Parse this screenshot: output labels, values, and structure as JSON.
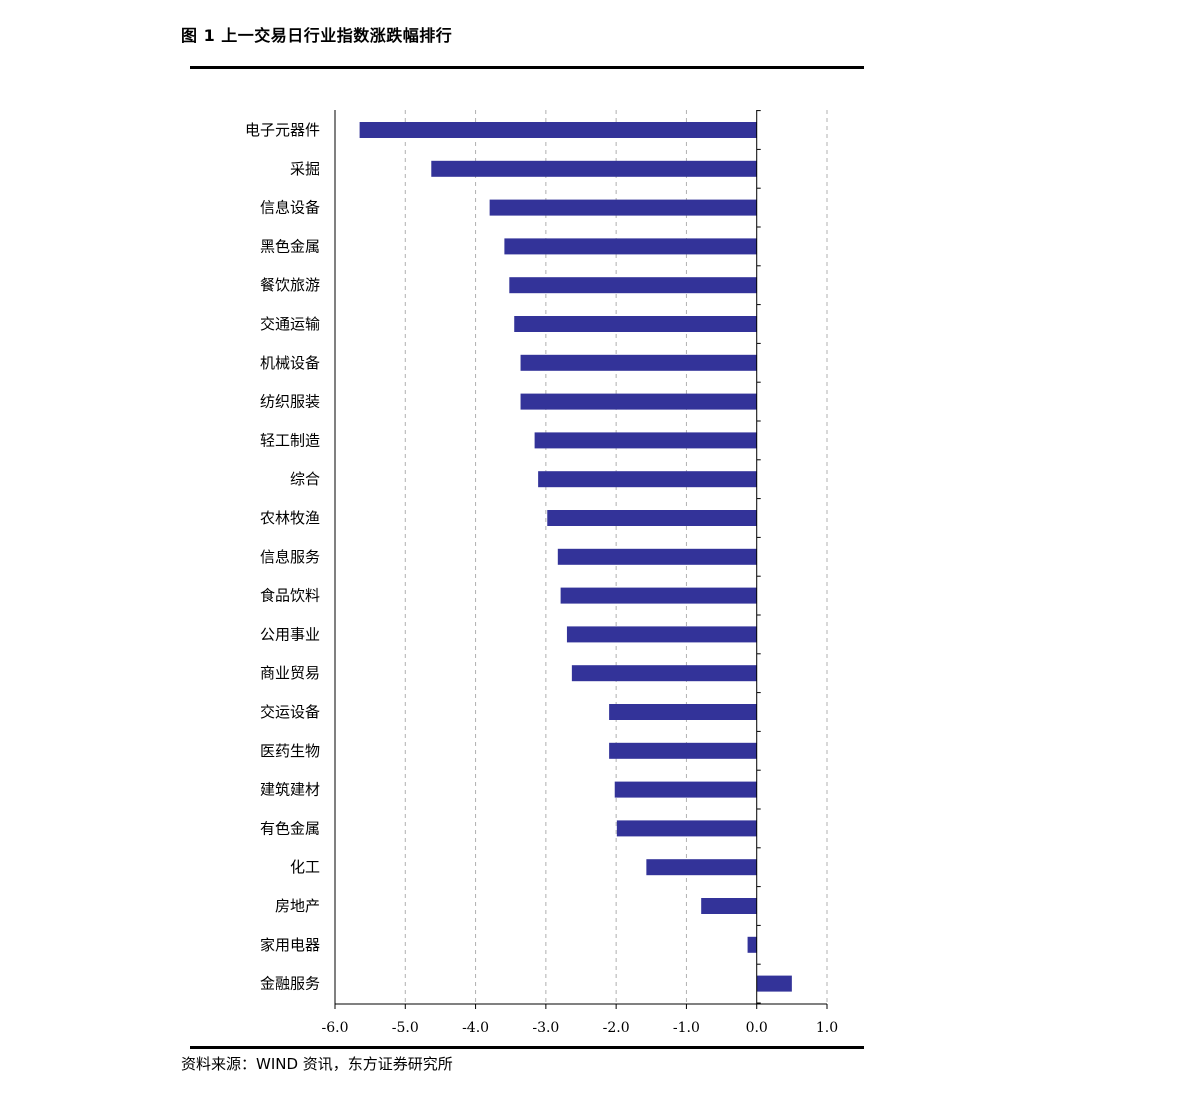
{
  "figure_title": "图 1 上一交易日行业指数涨跌幅排行",
  "source_note": "资料来源：WIND 资讯，东方证券研究所",
  "colors": {
    "bar": "#333399",
    "grid": "#b0b0b0",
    "axis": "#000000"
  },
  "chart_data": {
    "type": "bar",
    "orientation": "horizontal",
    "title": "",
    "xlabel": "",
    "ylabel": "",
    "xlim": [
      -6.0,
      1.0
    ],
    "xticks": [
      -6.0,
      -5.0,
      -4.0,
      -3.0,
      -2.0,
      -1.0,
      0.0,
      1.0
    ],
    "xtick_labels": [
      "-6.0",
      "-5.0",
      "-4.0",
      "-3.0",
      "-2.0",
      "-1.0",
      "0.0",
      "1.0"
    ],
    "grid": "vertical dashed",
    "categories": [
      "电子元器件",
      "采掘",
      "信息设备",
      "黑色金属",
      "餐饮旅游",
      "交通运输",
      "机械设备",
      "纺织服装",
      "轻工制造",
      "综合",
      "农林牧渔",
      "信息服务",
      "食品饮料",
      "公用事业",
      "商业贸易",
      "交运设备",
      "医药生物",
      "建筑建材",
      "有色金属",
      "化工",
      "房地产",
      "家用电器",
      "金融服务"
    ],
    "values": [
      -5.65,
      -4.63,
      -3.8,
      -3.59,
      -3.52,
      -3.45,
      -3.36,
      -3.36,
      -3.16,
      -3.11,
      -2.98,
      -2.83,
      -2.79,
      -2.7,
      -2.63,
      -2.1,
      -2.1,
      -2.02,
      -1.99,
      -1.57,
      -0.79,
      -0.13,
      0.5
    ]
  }
}
